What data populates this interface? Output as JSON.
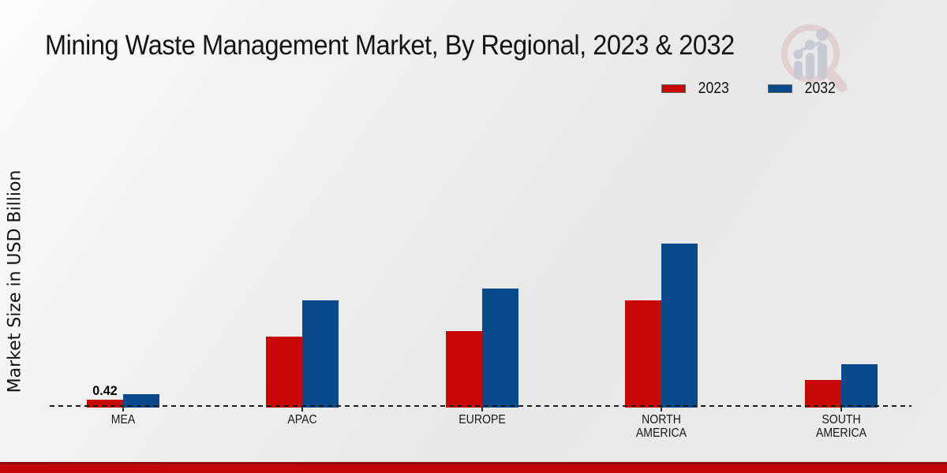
{
  "chart_data": {
    "type": "bar",
    "title": "Mining Waste Management Market, By Regional, 2023 & 2032",
    "ylabel": "Market Size in USD Billion",
    "xlabel": "",
    "categories": [
      "MEA",
      "APAC",
      "EUROPE",
      "NORTH AMERICA",
      "SOUTH AMERICA"
    ],
    "series": [
      {
        "name": "2023",
        "color": "#c80707",
        "values": [
          0.42,
          3.75,
          4.05,
          5.67,
          1.46
        ]
      },
      {
        "name": "2032",
        "color": "#0a4a8a",
        "values": [
          0.71,
          5.67,
          6.29,
          8.67,
          2.29
        ]
      }
    ],
    "ylim": [
      0,
      10
    ],
    "grid": false,
    "legend_position": "top-right",
    "baseline_style": "dashed",
    "data_labels": [
      {
        "series_index": 0,
        "category_index": 0,
        "text": "0.42"
      }
    ]
  },
  "theme": {
    "background": "#ebebeb",
    "text_color": "#151515",
    "baseline_color": "#1b1b1b",
    "footer_bar_color": "#c40606",
    "footer_line_color": "#8f1010",
    "watermark_pink": "#dcbcbc",
    "watermark_gray": "#c7cad0"
  },
  "watermark": {
    "name": "market-research-future-logo"
  }
}
